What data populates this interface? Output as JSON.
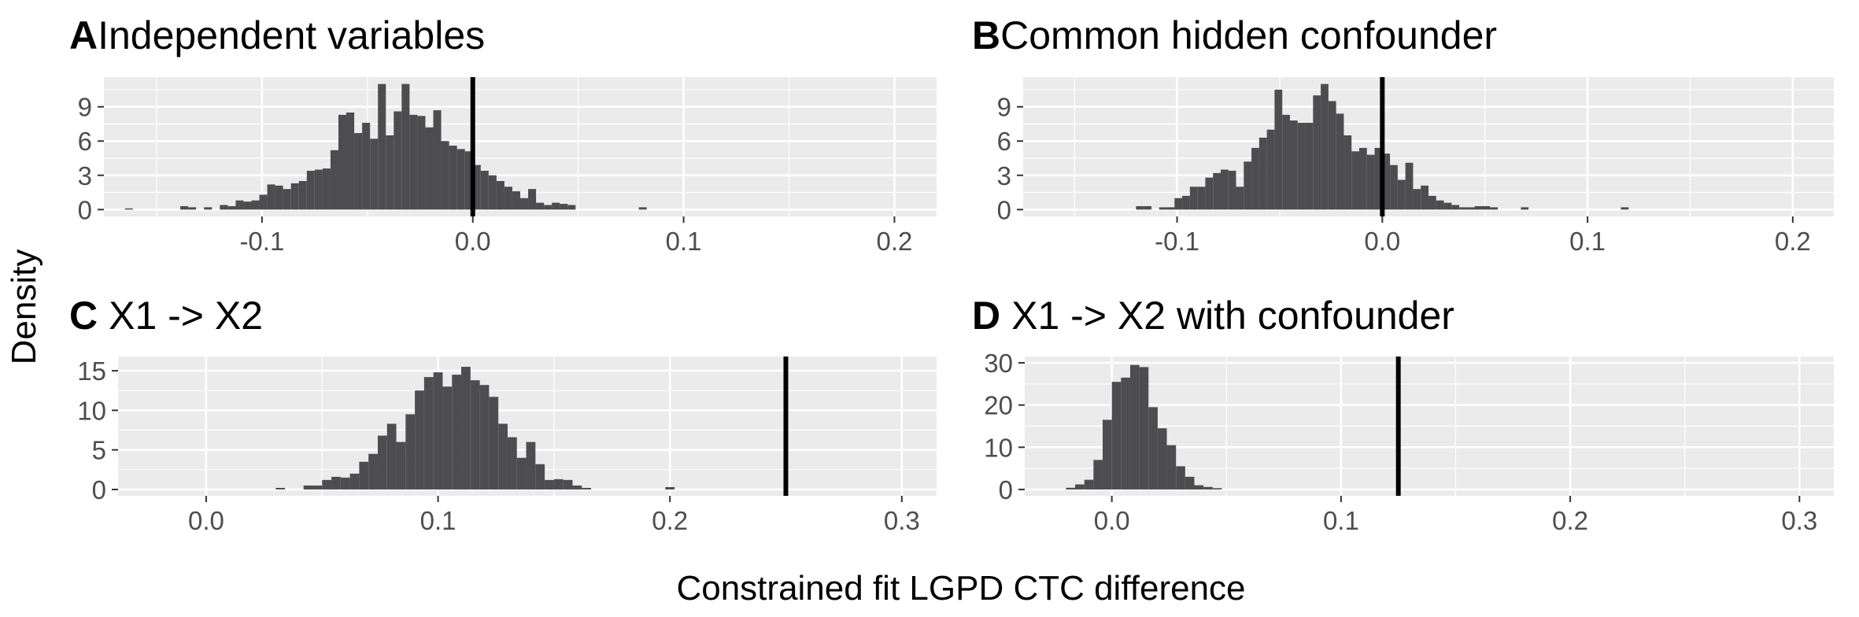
{
  "figure": {
    "ylabel": "Density",
    "xlabel": "Constrained fit LGPD CTC difference"
  },
  "chart_data": [
    {
      "panel": "A",
      "type": "histogram",
      "title": "Independent variables",
      "xlim": [
        -0.175,
        0.22
      ],
      "ylim": [
        -0.6,
        11.6
      ],
      "x_ticks": [
        -0.1,
        0.0,
        0.1,
        0.2
      ],
      "x_tick_labels": [
        "-0.1",
        "0.0",
        "0.1",
        "0.2"
      ],
      "y_ticks": [
        0,
        3,
        6,
        9
      ],
      "y_tick_labels": [
        "0",
        "3",
        "6",
        "9"
      ],
      "grid": true,
      "reference_line_x": 0.0,
      "bin_start": -0.165,
      "bin_width": 0.00375,
      "values": [
        0.1,
        0,
        0,
        0,
        0,
        0,
        0,
        0.3,
        0.2,
        0,
        0.2,
        0,
        0.4,
        0.3,
        0.8,
        0.7,
        0.8,
        1.3,
        2.2,
        2.1,
        1.8,
        2.3,
        2.5,
        3.4,
        3.5,
        3.6,
        5.2,
        8.3,
        8.5,
        6.7,
        7.6,
        6.2,
        11.0,
        6.5,
        8.6,
        11.0,
        8.3,
        8.2,
        7.2,
        8.7,
        6.0,
        5.6,
        5.3,
        5.1,
        3.9,
        3.4,
        3.0,
        2.5,
        2.0,
        1.6,
        1.0,
        1.8,
        0.6,
        0.4,
        0.6,
        0.5,
        0.4,
        0,
        0,
        0,
        0,
        0,
        0,
        0,
        0,
        0.2
      ]
    },
    {
      "panel": "B",
      "type": "histogram",
      "title": "Common hidden confounder",
      "xlim": [
        -0.175,
        0.22
      ],
      "ylim": [
        -0.6,
        11.6
      ],
      "x_ticks": [
        -0.1,
        0.0,
        0.1,
        0.2
      ],
      "x_tick_labels": [
        "-0.1",
        "0.0",
        "0.1",
        "0.2"
      ],
      "y_ticks": [
        0,
        3,
        6,
        9
      ],
      "y_tick_labels": [
        "0",
        "3",
        "6",
        "9"
      ],
      "grid": true,
      "reference_line_x": 0.0,
      "bin_start": -0.12,
      "bin_width": 0.00375,
      "values": [
        0.3,
        0.3,
        0,
        0.2,
        0.2,
        1.0,
        1.2,
        2.0,
        2.0,
        2.8,
        3.2,
        3.5,
        3.4,
        2.0,
        4.2,
        5.4,
        6.3,
        7.0,
        10.5,
        8.3,
        7.8,
        7.6,
        7.6,
        10.0,
        11.0,
        9.5,
        8.4,
        6.5,
        5.1,
        5.4,
        4.8,
        5.4,
        4.9,
        3.9,
        2.6,
        4.1,
        1.8,
        2.1,
        1.2,
        0.8,
        0.6,
        0.4,
        0.2,
        0.2,
        0.3,
        0.3,
        0.2,
        0,
        0,
        0,
        0.2,
        0,
        0,
        0,
        0,
        0,
        0,
        0,
        0,
        0,
        0,
        0,
        0,
        0.2
      ]
    },
    {
      "panel": "C",
      "type": "histogram",
      "title": "X1 -> X2",
      "xlim": [
        -0.038,
        0.315
      ],
      "ylim": [
        -0.8,
        16.8
      ],
      "x_ticks": [
        0.0,
        0.1,
        0.2,
        0.3
      ],
      "x_tick_labels": [
        "0.0",
        "0.1",
        "0.2",
        "0.3"
      ],
      "y_ticks": [
        0,
        5,
        10,
        15
      ],
      "y_tick_labels": [
        "0",
        "5",
        "10",
        "15"
      ],
      "grid": true,
      "reference_line_x": 0.25,
      "bin_start": 0.03,
      "bin_width": 0.004,
      "values": [
        0.2,
        0,
        0,
        0.5,
        0.5,
        1.2,
        1.6,
        1.5,
        2.0,
        3.5,
        4.5,
        6.8,
        8.3,
        6.0,
        9.5,
        12.5,
        14.2,
        14.8,
        13.0,
        14.5,
        15.5,
        13.8,
        13.2,
        11.7,
        8.3,
        6.6,
        4.0,
        6.0,
        3.2,
        1.2,
        1.3,
        1.2,
        0.5,
        0.2,
        0,
        0,
        0,
        0,
        0,
        0,
        0,
        0,
        0.3
      ]
    },
    {
      "panel": "D",
      "type": "histogram",
      "title": "X1 -> X2 with confounder",
      "xlim": [
        -0.038,
        0.315
      ],
      "ylim": [
        -1.5,
        31.5
      ],
      "x_ticks": [
        0.0,
        0.1,
        0.2,
        0.3
      ],
      "x_tick_labels": [
        "0.0",
        "0.1",
        "0.2",
        "0.3"
      ],
      "y_ticks": [
        0,
        10,
        20,
        30
      ],
      "y_tick_labels": [
        "0",
        "10",
        "20",
        "30"
      ],
      "grid": true,
      "reference_line_x": 0.125,
      "bin_start": -0.02,
      "bin_width": 0.004,
      "values": [
        0.4,
        1.2,
        2.3,
        7.0,
        16.5,
        25.5,
        26.5,
        29.5,
        29.0,
        19.5,
        14.5,
        10.5,
        5.5,
        3.0,
        1.0,
        0.6,
        0.3
      ]
    }
  ]
}
